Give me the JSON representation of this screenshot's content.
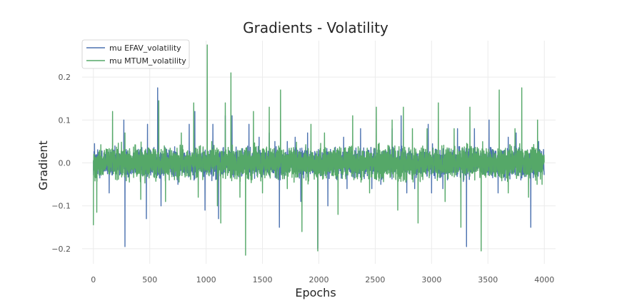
{
  "chart_data": {
    "type": "line",
    "title": "Gradients - Volatility",
    "xlabel": "Epochs",
    "ylabel": "Gradient",
    "xlim": [
      -100,
      4100
    ],
    "ylim": [
      -0.235,
      0.285
    ],
    "x_ticks": [
      0,
      500,
      1000,
      1500,
      2000,
      2500,
      3000,
      3500,
      4000
    ],
    "y_ticks": [
      -0.2,
      -0.1,
      0.0,
      0.1,
      0.2
    ],
    "x_tick_labels": [
      "0",
      "500",
      "1000",
      "1500",
      "2000",
      "2500",
      "3000",
      "3500",
      "4000"
    ],
    "y_tick_labels": [
      "−0.2",
      "−0.1",
      "0.0",
      "0.1",
      "0.2"
    ],
    "grid": true,
    "legend_position": "top-left",
    "n_points": 4000,
    "series": [
      {
        "name": "mu EFAV_volatility",
        "color": "#4c72b0",
        "noise_scale": 0.022,
        "spikes": [
          [
            10,
            0.045
          ],
          [
            140,
            -0.07
          ],
          [
            270,
            0.1
          ],
          [
            280,
            -0.195
          ],
          [
            470,
            -0.13
          ],
          [
            480,
            0.09
          ],
          [
            570,
            0.175
          ],
          [
            600,
            -0.1
          ],
          [
            750,
            -0.05
          ],
          [
            850,
            0.09
          ],
          [
            900,
            0.12
          ],
          [
            990,
            -0.11
          ],
          [
            1060,
            0.09
          ],
          [
            1110,
            -0.13
          ],
          [
            1170,
            0.11
          ],
          [
            1230,
            0.11
          ],
          [
            1380,
            0.09
          ],
          [
            1470,
            0.06
          ],
          [
            1560,
            0.07
          ],
          [
            1610,
            0.05
          ],
          [
            1650,
            -0.15
          ],
          [
            1720,
            0.05
          ],
          [
            1790,
            0.06
          ],
          [
            1840,
            -0.09
          ],
          [
            1900,
            0.07
          ],
          [
            1990,
            -0.2
          ],
          [
            2080,
            -0.1
          ],
          [
            2220,
            0.06
          ],
          [
            2250,
            -0.06
          ],
          [
            2370,
            0.08
          ],
          [
            2470,
            -0.06
          ],
          [
            2550,
            -0.05
          ],
          [
            2650,
            0.08
          ],
          [
            2730,
            0.11
          ],
          [
            2780,
            -0.07
          ],
          [
            2850,
            -0.06
          ],
          [
            2970,
            0.09
          ],
          [
            3000,
            -0.07
          ],
          [
            3100,
            -0.06
          ],
          [
            3230,
            0.08
          ],
          [
            3310,
            -0.195
          ],
          [
            3380,
            0.08
          ],
          [
            3510,
            0.1
          ],
          [
            3590,
            -0.07
          ],
          [
            3680,
            0.06
          ],
          [
            3750,
            0.07
          ],
          [
            3880,
            -0.15
          ],
          [
            3950,
            0.05
          ]
        ]
      },
      {
        "name": "mu MTUM_volatility",
        "color": "#55a868",
        "noise_scale": 0.025,
        "spikes": [
          [
            0,
            -0.145
          ],
          [
            30,
            -0.115
          ],
          [
            170,
            0.12
          ],
          [
            280,
            0.07
          ],
          [
            420,
            -0.085
          ],
          [
            580,
            0.145
          ],
          [
            640,
            -0.09
          ],
          [
            780,
            0.07
          ],
          [
            890,
            0.14
          ],
          [
            930,
            -0.08
          ],
          [
            1010,
            0.275
          ],
          [
            1050,
            0.05
          ],
          [
            1100,
            -0.1
          ],
          [
            1130,
            -0.14
          ],
          [
            1170,
            0.14
          ],
          [
            1220,
            0.21
          ],
          [
            1300,
            -0.08
          ],
          [
            1350,
            -0.215
          ],
          [
            1420,
            0.12
          ],
          [
            1500,
            -0.07
          ],
          [
            1560,
            0.13
          ],
          [
            1660,
            0.17
          ],
          [
            1720,
            -0.06
          ],
          [
            1850,
            -0.16
          ],
          [
            1930,
            0.09
          ],
          [
            1990,
            -0.205
          ],
          [
            2050,
            0.07
          ],
          [
            2170,
            -0.12
          ],
          [
            2300,
            0.11
          ],
          [
            2450,
            -0.07
          ],
          [
            2510,
            0.13
          ],
          [
            2650,
            0.1
          ],
          [
            2700,
            -0.11
          ],
          [
            2750,
            0.13
          ],
          [
            2830,
            0.08
          ],
          [
            2880,
            -0.14
          ],
          [
            2960,
            0.08
          ],
          [
            3060,
            0.14
          ],
          [
            3120,
            -0.09
          ],
          [
            3200,
            0.08
          ],
          [
            3260,
            -0.15
          ],
          [
            3340,
            0.13
          ],
          [
            3440,
            -0.205
          ],
          [
            3600,
            0.17
          ],
          [
            3680,
            -0.07
          ],
          [
            3740,
            0.08
          ],
          [
            3800,
            0.175
          ],
          [
            3860,
            -0.08
          ],
          [
            3940,
            0.1
          ],
          [
            3980,
            -0.05
          ]
        ]
      }
    ]
  }
}
